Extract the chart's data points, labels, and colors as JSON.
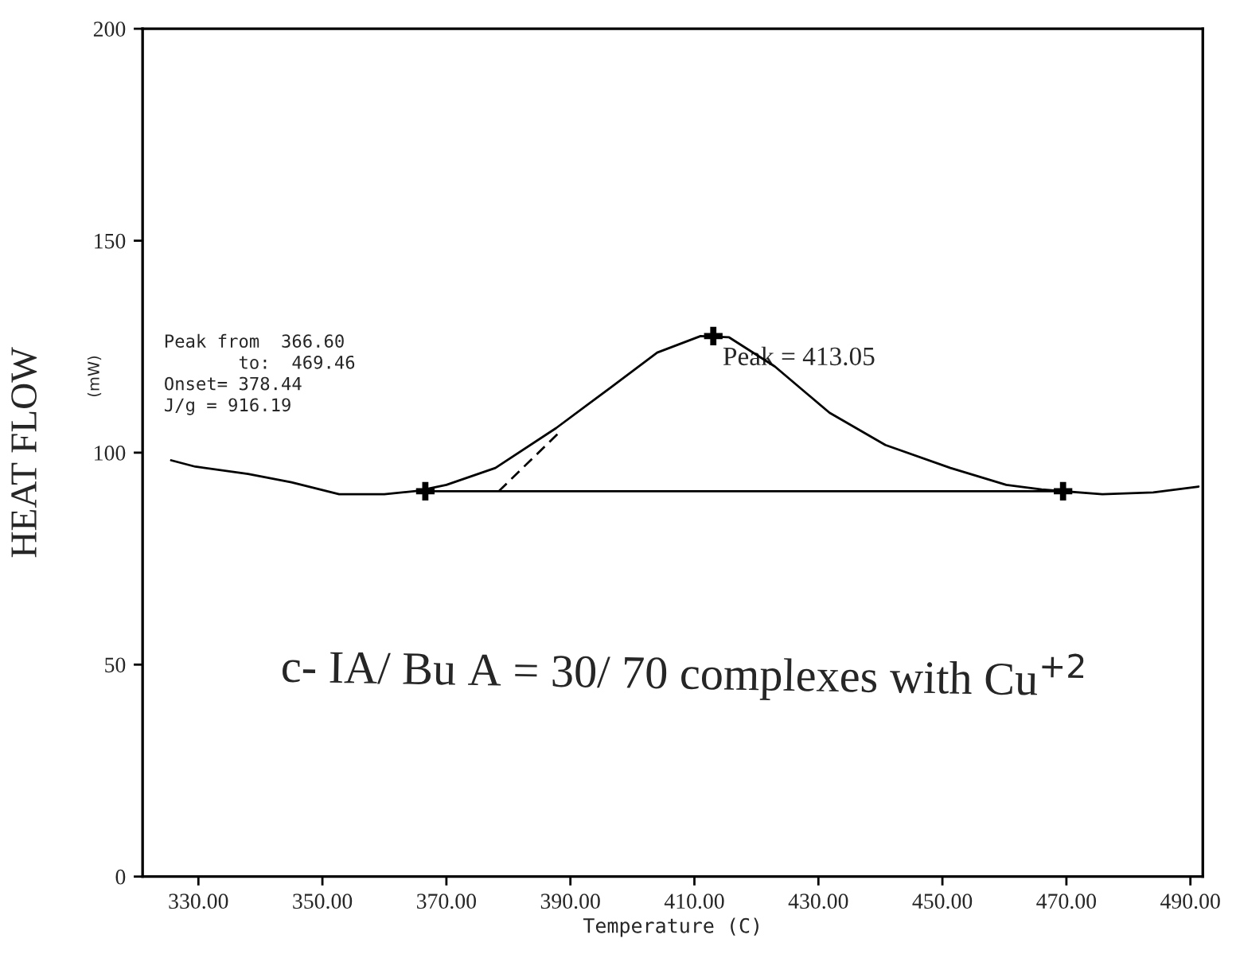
{
  "chart_data": {
    "type": "line",
    "xlabel": "Temperature (C)",
    "ylabel": "HEAT FLOW",
    "series": [
      {
        "color": "#000000",
        "x": [
          325.6,
          329.5,
          338,
          345,
          352.7,
          360,
          365.4,
          370,
          377.9,
          387.7,
          396.7,
          404,
          411,
          415.6,
          423,
          431.8,
          440.8,
          451.3,
          460.3,
          466,
          475.8,
          484,
          491.3
        ],
        "values": [
          98.2,
          96.7,
          95,
          93,
          90.2,
          90.2,
          91,
          92.4,
          96.4,
          105.8,
          115.6,
          123.6,
          127.5,
          127.2,
          120.3,
          109.4,
          101.8,
          96.4,
          92.4,
          91.3,
          90.2,
          90.6,
          92
        ]
      },
      {
        "type": "line",
        "color": "#000000",
        "x": [
          366.6,
          469.46
        ],
        "values": [
          90.9,
          90.9
        ]
      },
      {
        "type": "line",
        "color": "#000000",
        "line_style": "dashed",
        "x": [
          378.44,
          388
        ],
        "values": [
          90.9,
          104.5
        ]
      },
      {
        "type": "scatter",
        "color": "#000000",
        "marker": "cross",
        "x": [
          366.6,
          413.05,
          469.46
        ],
        "values": [
          90.9,
          127.5,
          90.9
        ]
      }
    ],
    "xlim": [
      321,
      492
    ],
    "ylim": [
      0,
      200
    ],
    "xticks": [
      {
        "value": 330,
        "label": "330.00"
      },
      {
        "value": 350,
        "label": "350.00"
      },
      {
        "value": 370,
        "label": "370.00"
      },
      {
        "value": 390,
        "label": "390.00"
      },
      {
        "value": 410,
        "label": "410.00"
      },
      {
        "value": 430,
        "label": "430.00"
      },
      {
        "value": 450,
        "label": "450.00"
      },
      {
        "value": 470,
        "label": "470.00"
      },
      {
        "value": 490,
        "label": "490.00"
      }
    ],
    "yticks": [
      0,
      50,
      100,
      150,
      200
    ],
    "annotations": [
      {
        "text": "Peak = 413.05",
        "x": 413.05,
        "y": 127.5
      },
      "Peak from  366.60\n       to:  469.46\nOnset= 378.44\nJ/g = 916.19",
      "c- IA/ Bu A = 30/ 70 complexes with Cu$^{+2}$",
      "(mW)"
    ],
    "grid": false,
    "legend": false
  }
}
